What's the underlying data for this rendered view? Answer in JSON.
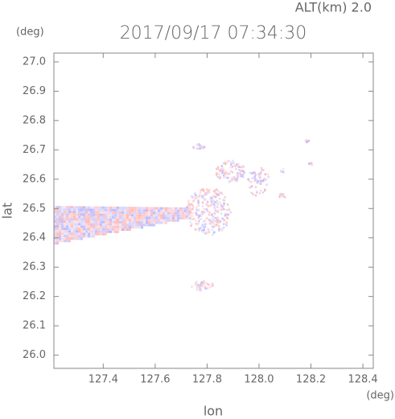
{
  "chart_data": {
    "type": "image",
    "title": "2017/09/17 07:34:30",
    "subtitle": "ALT(km) 2.0",
    "x_label": "lon",
    "y_label": "lat",
    "x_unit": "(deg)",
    "y_unit": "(deg)",
    "xlim": [
      127.21,
      128.44
    ],
    "ylim": [
      25.955,
      27.03
    ],
    "xticks": [
      127.4,
      127.6,
      127.8,
      {
        "value": 128.0,
        "label": "128.0"
      },
      128.2,
      128.4
    ],
    "yticks": [
      {
        "value": 26.0,
        "label": "26.0"
      },
      26.1,
      26.2,
      26.3,
      26.4,
      26.5,
      26.6,
      26.7,
      26.8,
      26.9,
      {
        "value": 27.0,
        "label": "27.0"
      }
    ]
  }
}
